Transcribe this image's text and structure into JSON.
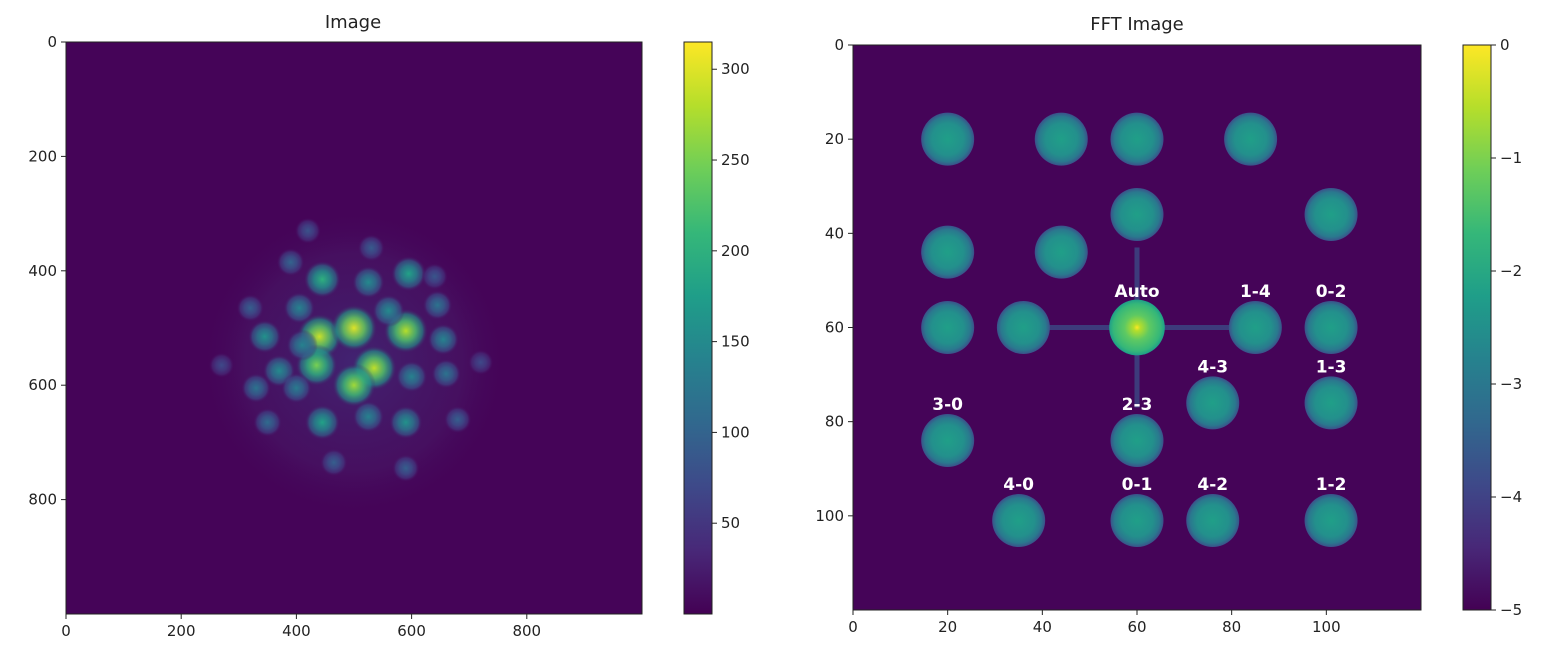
{
  "colors": {
    "viridis": [
      "#440154",
      "#482878",
      "#3e4989",
      "#31688e",
      "#26828e",
      "#1f9e89",
      "#35b779",
      "#6ece58",
      "#b5de2b",
      "#fde725"
    ],
    "background": "#450458",
    "annotation_text": "#ffffff"
  },
  "chart_data": [
    {
      "type": "heatmap",
      "title": "Image",
      "xlim": [
        0,
        1000
      ],
      "ylim": [
        1000,
        0
      ],
      "x_ticks": [
        "0",
        "200",
        "400",
        "600",
        "800"
      ],
      "y_ticks": [
        "0",
        "200",
        "400",
        "600",
        "800"
      ],
      "x_tick_values": [
        0,
        200,
        400,
        600,
        800
      ],
      "y_tick_values": [
        0,
        200,
        400,
        600,
        800
      ],
      "colorbar": {
        "range": [
          0,
          315
        ],
        "ticks": [
          "50",
          "100",
          "150",
          "200",
          "250",
          "300"
        ],
        "tick_values": [
          50,
          100,
          150,
          200,
          250,
          300
        ]
      },
      "envelope": {
        "center": [
          500,
          560
        ],
        "radius": 270
      },
      "spots": [
        {
          "x": 440,
          "y": 515,
          "v": 290
        },
        {
          "x": 500,
          "y": 500,
          "v": 300
        },
        {
          "x": 590,
          "y": 505,
          "v": 280
        },
        {
          "x": 435,
          "y": 565,
          "v": 250
        },
        {
          "x": 535,
          "y": 570,
          "v": 285
        },
        {
          "x": 500,
          "y": 600,
          "v": 270
        },
        {
          "x": 445,
          "y": 415,
          "v": 200
        },
        {
          "x": 405,
          "y": 465,
          "v": 140
        },
        {
          "x": 345,
          "y": 515,
          "v": 160
        },
        {
          "x": 410,
          "y": 530,
          "v": 140
        },
        {
          "x": 525,
          "y": 420,
          "v": 150
        },
        {
          "x": 595,
          "y": 405,
          "v": 180
        },
        {
          "x": 560,
          "y": 470,
          "v": 150
        },
        {
          "x": 645,
          "y": 460,
          "v": 120
        },
        {
          "x": 655,
          "y": 520,
          "v": 140
        },
        {
          "x": 370,
          "y": 575,
          "v": 150
        },
        {
          "x": 330,
          "y": 605,
          "v": 120
        },
        {
          "x": 400,
          "y": 605,
          "v": 130
        },
        {
          "x": 600,
          "y": 585,
          "v": 140
        },
        {
          "x": 660,
          "y": 580,
          "v": 120
        },
        {
          "x": 445,
          "y": 665,
          "v": 180
        },
        {
          "x": 525,
          "y": 655,
          "v": 140
        },
        {
          "x": 590,
          "y": 665,
          "v": 160
        },
        {
          "x": 350,
          "y": 665,
          "v": 110
        },
        {
          "x": 390,
          "y": 385,
          "v": 100
        },
        {
          "x": 590,
          "y": 745,
          "v": 95
        },
        {
          "x": 465,
          "y": 735,
          "v": 95
        },
        {
          "x": 320,
          "y": 465,
          "v": 95
        },
        {
          "x": 680,
          "y": 660,
          "v": 95
        },
        {
          "x": 530,
          "y": 360,
          "v": 90
        },
        {
          "x": 420,
          "y": 330,
          "v": 80
        },
        {
          "x": 640,
          "y": 410,
          "v": 85
        },
        {
          "x": 270,
          "y": 565,
          "v": 70
        },
        {
          "x": 720,
          "y": 560,
          "v": 70
        }
      ]
    },
    {
      "type": "heatmap",
      "title": "FFT Image",
      "xlim": [
        0,
        120
      ],
      "ylim": [
        120,
        0
      ],
      "x_ticks": [
        "0",
        "20",
        "40",
        "60",
        "80",
        "100"
      ],
      "y_ticks": [
        "0",
        "20",
        "40",
        "60",
        "80",
        "100"
      ],
      "x_tick_values": [
        0,
        20,
        40,
        60,
        80,
        100
      ],
      "y_tick_values": [
        0,
        20,
        40,
        60,
        80,
        100
      ],
      "colorbar": {
        "range": [
          -5,
          0
        ],
        "ticks": [
          "0",
          "−1",
          "−2",
          "−3",
          "−4",
          "−5"
        ],
        "tick_values": [
          0,
          -1,
          -2,
          -3,
          -4,
          -5
        ]
      },
      "peaks": [
        {
          "x": 20,
          "y": 20,
          "label": ""
        },
        {
          "x": 44,
          "y": 20,
          "label": ""
        },
        {
          "x": 60,
          "y": 20,
          "label": ""
        },
        {
          "x": 84,
          "y": 20,
          "label": ""
        },
        {
          "x": 60,
          "y": 36,
          "label": ""
        },
        {
          "x": 101,
          "y": 36,
          "label": ""
        },
        {
          "x": 20,
          "y": 44,
          "label": ""
        },
        {
          "x": 44,
          "y": 44,
          "label": ""
        },
        {
          "x": 20,
          "y": 60,
          "label": ""
        },
        {
          "x": 36,
          "y": 60,
          "label": ""
        },
        {
          "x": 60,
          "y": 60,
          "label": "Auto"
        },
        {
          "x": 85,
          "y": 60,
          "label": "1-4"
        },
        {
          "x": 101,
          "y": 60,
          "label": "0-2"
        },
        {
          "x": 76,
          "y": 76,
          "label": "4-3"
        },
        {
          "x": 101,
          "y": 76,
          "label": "1-3"
        },
        {
          "x": 20,
          "y": 84,
          "label": "3-0"
        },
        {
          "x": 60,
          "y": 84,
          "label": "2-3"
        },
        {
          "x": 35,
          "y": 101,
          "label": "4-0"
        },
        {
          "x": 60,
          "y": 101,
          "label": "0-1"
        },
        {
          "x": 76,
          "y": 101,
          "label": "4-2"
        },
        {
          "x": 101,
          "y": 101,
          "label": "1-2"
        }
      ]
    }
  ]
}
